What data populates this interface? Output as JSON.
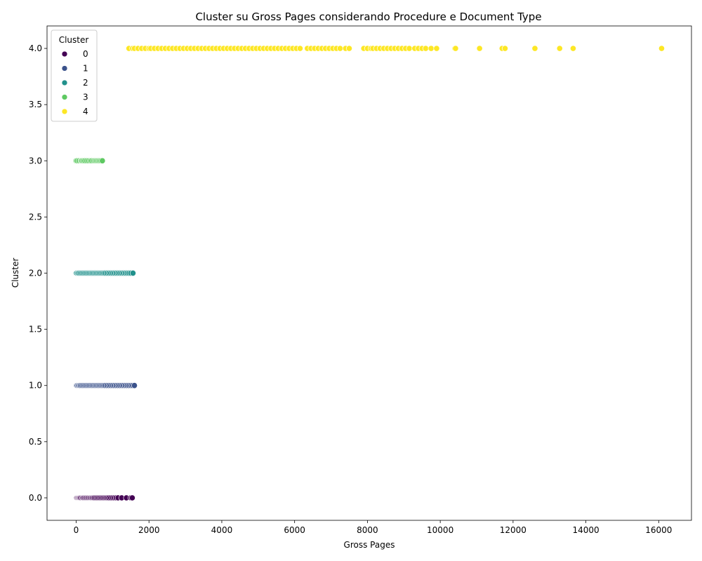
{
  "chart_data": {
    "type": "scatter",
    "title": "Cluster su Gross Pages considerando Procedure e Document Type",
    "xlabel": "Gross Pages",
    "ylabel": "Cluster",
    "xlim": [
      -800,
      16900
    ],
    "ylim": [
      -0.2,
      4.2
    ],
    "xticks": [
      0,
      2000,
      4000,
      6000,
      8000,
      10000,
      12000,
      14000,
      16000
    ],
    "xtick_labels": [
      "0",
      "2000",
      "4000",
      "6000",
      "8000",
      "10000",
      "12000",
      "14000",
      "16000"
    ],
    "yticks": [
      0.0,
      0.5,
      1.0,
      1.5,
      2.0,
      2.5,
      3.0,
      3.5,
      4.0
    ],
    "ytick_labels": [
      "0.0",
      "0.5",
      "1.0",
      "1.5",
      "2.0",
      "2.5",
      "3.0",
      "3.5",
      "4.0"
    ],
    "grid": false,
    "legend": {
      "title": "Cluster",
      "placement": "top-left",
      "entries": [
        "0",
        "1",
        "2",
        "3",
        "4"
      ]
    },
    "colors": [
      "#440154",
      "#3b528b",
      "#21918c",
      "#5ec962",
      "#fde725"
    ],
    "marker_edge": "#ffffff",
    "series": [
      {
        "name": "0",
        "cluster": 0,
        "x": [
          0,
          5,
          10,
          20,
          40,
          60,
          80,
          100,
          120,
          150,
          180,
          200,
          230,
          260,
          290,
          320,
          350,
          380,
          410,
          440,
          470,
          500,
          540,
          580,
          620,
          660,
          700,
          740,
          780,
          820,
          860,
          900,
          950,
          1000,
          1050,
          1100,
          1150,
          1250,
          1380,
          1500,
          1540
        ]
      },
      {
        "name": "1",
        "cluster": 1,
        "x": [
          0,
          10,
          30,
          60,
          90,
          120,
          160,
          200,
          240,
          280,
          320,
          360,
          400,
          440,
          480,
          520,
          560,
          600,
          640,
          680,
          720,
          760,
          800,
          850,
          900,
          950,
          1000,
          1050,
          1100,
          1150,
          1200,
          1250,
          1300,
          1350,
          1400,
          1450,
          1500,
          1550,
          1600
        ]
      },
      {
        "name": "2",
        "cluster": 2,
        "x": [
          0,
          20,
          50,
          80,
          120,
          160,
          200,
          240,
          280,
          320,
          360,
          400,
          440,
          480,
          520,
          560,
          600,
          640,
          680,
          720,
          760,
          800,
          850,
          900,
          950,
          1000,
          1050,
          1100,
          1150,
          1200,
          1250,
          1300,
          1350,
          1400,
          1450,
          1500,
          1560
        ]
      },
      {
        "name": "3",
        "cluster": 3,
        "x": [
          0,
          30,
          80,
          130,
          160,
          200,
          240,
          290,
          340,
          390,
          430,
          480,
          520,
          560,
          600,
          640,
          680,
          720
        ]
      },
      {
        "name": "4",
        "cluster": 4,
        "x": [
          1450,
          1550,
          1600,
          1700,
          1800,
          1900,
          2000,
          2050,
          2150,
          2250,
          2350,
          2450,
          2550,
          2650,
          2750,
          2850,
          2950,
          3050,
          3150,
          3250,
          3350,
          3450,
          3550,
          3650,
          3750,
          3850,
          3950,
          4050,
          4150,
          4250,
          4350,
          4450,
          4550,
          4650,
          4750,
          4850,
          4950,
          5050,
          5150,
          5250,
          5350,
          5450,
          5550,
          5650,
          5750,
          5850,
          5950,
          6050,
          6150,
          6350,
          6450,
          6550,
          6650,
          6750,
          6850,
          6950,
          7050,
          7150,
          7250,
          7400,
          7500,
          7900,
          8000,
          8100,
          8150,
          8250,
          8350,
          8450,
          8550,
          8650,
          8750,
          8850,
          8950,
          9050,
          9150,
          9300,
          9400,
          9500,
          9600,
          9750,
          9900,
          10400,
          10420,
          11080,
          11700,
          11780,
          12600,
          13280,
          13650,
          16080
        ]
      }
    ]
  }
}
